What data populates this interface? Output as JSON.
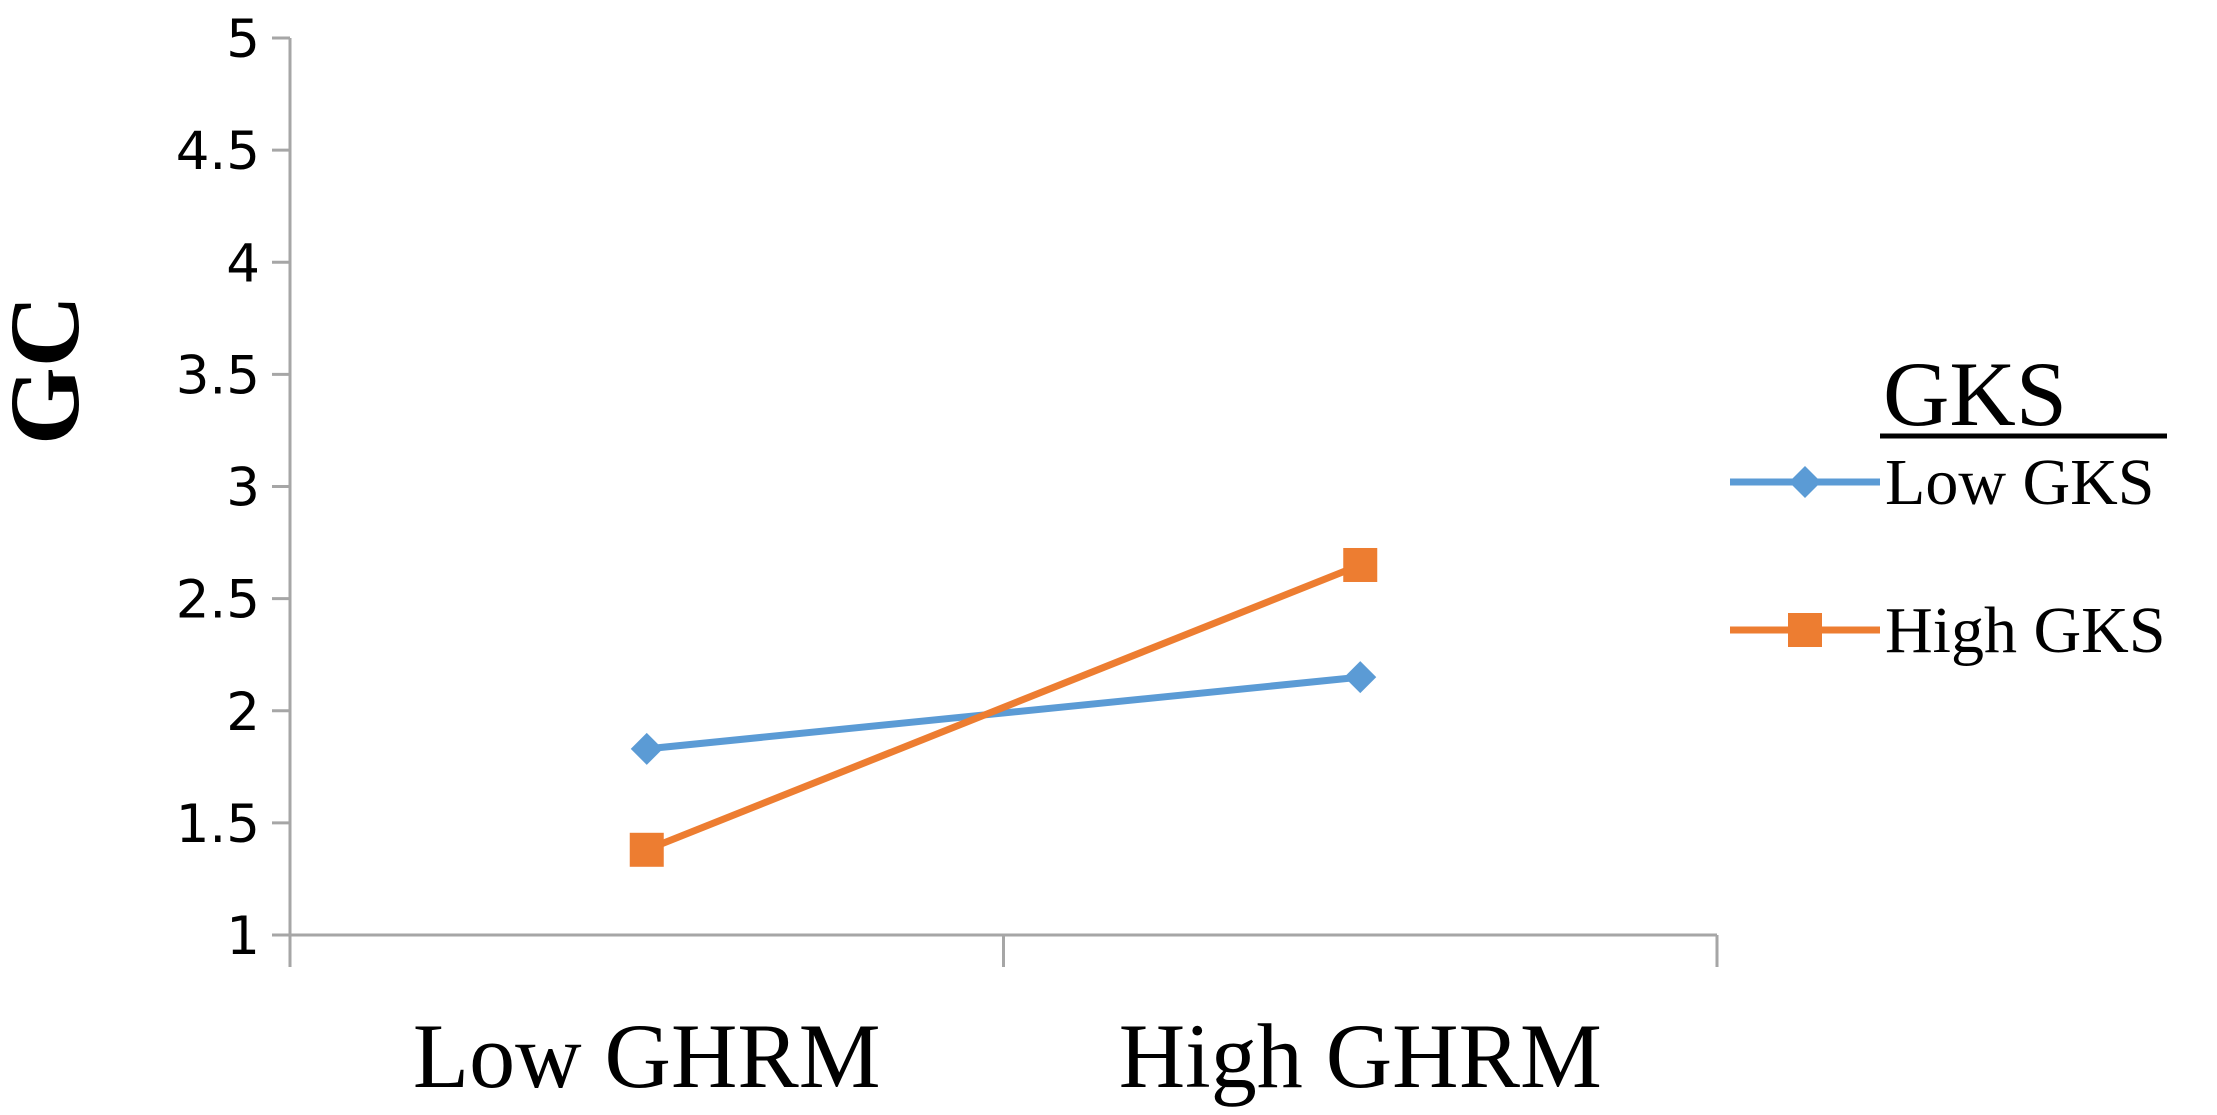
{
  "chart_data": {
    "type": "line",
    "categories": [
      "Low GHRM",
      "High GHRM"
    ],
    "series": [
      {
        "name": "Low GKS",
        "values": [
          1.83,
          2.15
        ],
        "color": "#5B9BD5",
        "marker": "diamond"
      },
      {
        "name": "High GKS",
        "values": [
          1.38,
          2.65
        ],
        "color": "#ED7D31",
        "marker": "square"
      }
    ],
    "title": "",
    "xlabel": "",
    "ylabel": "GC",
    "ylim": [
      1,
      5
    ],
    "yticks": [
      "1",
      "1.5",
      "2",
      "2.5",
      "3",
      "3.5",
      "4",
      "4.5",
      "5"
    ],
    "grid": false,
    "legend": {
      "title": "GKS",
      "position": "right",
      "entries": [
        "Low GKS",
        "High GKS"
      ]
    }
  }
}
